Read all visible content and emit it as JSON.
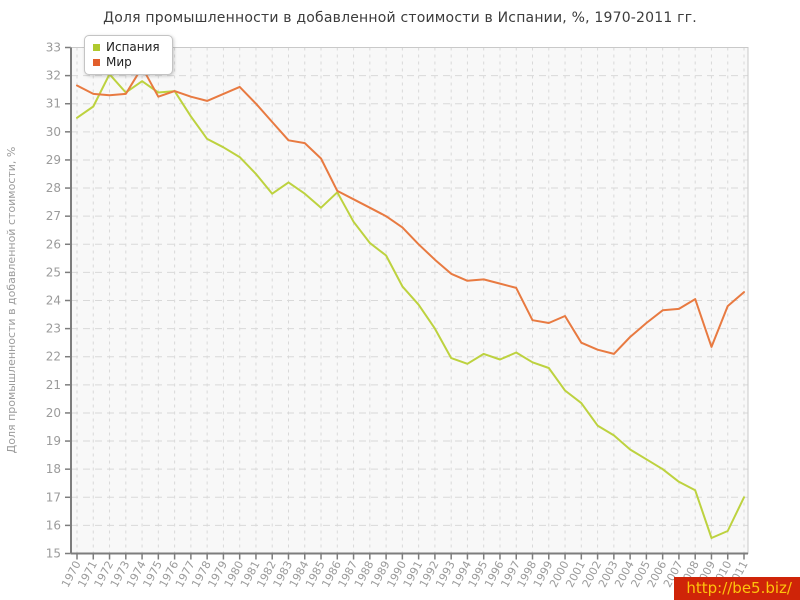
{
  "title": "Доля промышленности в добавленной стоимости в Испании, %, 1970-2011 гг.",
  "watermark": "http://be5.biz/",
  "colors": {
    "spain": "#bdd23f",
    "spain_marker": "#afc92e",
    "world": "#e87a41",
    "world_marker": "#e25e2b",
    "grid": "#d9d9d9",
    "plot_bg": "#f8f8f8",
    "plot_border": "#c9c9c9",
    "axis": "#7d7d7d",
    "tick_label": "#9b9b9b",
    "title_text": "#3c3c3c",
    "watermark_bg": "#cf2408",
    "watermark_text": "#fec30c"
  },
  "chart_data": {
    "type": "line",
    "title": "Доля промышленности в добавленной стоимости в Испании, %, 1970-2011 гг.",
    "xlabel": "",
    "ylabel": "Доля промышленности в добавленной стоимости, %",
    "ylim": [
      15,
      33
    ],
    "ytick_step": 1,
    "grid": true,
    "legend_position": "top-left",
    "x": [
      1970,
      1971,
      1972,
      1973,
      1974,
      1975,
      1976,
      1977,
      1978,
      1979,
      1980,
      1981,
      1982,
      1983,
      1984,
      1985,
      1986,
      1987,
      1988,
      1989,
      1990,
      1991,
      1992,
      1993,
      1994,
      1995,
      1996,
      1997,
      1998,
      1999,
      2000,
      2001,
      2002,
      2003,
      2004,
      2005,
      2006,
      2007,
      2008,
      2009,
      2010,
      2011
    ],
    "series": [
      {
        "id": "spain",
        "name": "Испания",
        "values": [
          30.5,
          30.9,
          32.05,
          31.4,
          31.8,
          31.4,
          31.45,
          30.55,
          29.75,
          29.45,
          29.1,
          28.5,
          27.8,
          28.2,
          27.8,
          27.3,
          27.85,
          26.8,
          26.05,
          25.6,
          24.5,
          23.85,
          23.0,
          21.95,
          21.75,
          22.1,
          21.9,
          22.15,
          21.8,
          21.6,
          20.8,
          20.35,
          19.55,
          19.2,
          18.7,
          18.35,
          18.0,
          17.55,
          17.25,
          15.55,
          15.8,
          17.0
        ]
      },
      {
        "id": "world",
        "name": "Мир",
        "values": [
          31.65,
          31.35,
          31.3,
          31.35,
          32.3,
          31.25,
          31.45,
          31.25,
          31.1,
          31.35,
          31.6,
          31.0,
          30.35,
          29.7,
          29.6,
          29.05,
          27.9,
          27.6,
          27.3,
          27.0,
          26.6,
          26.0,
          25.45,
          24.95,
          24.7,
          24.75,
          24.6,
          24.45,
          23.3,
          23.2,
          23.45,
          22.5,
          22.25,
          22.1,
          22.7,
          23.2,
          23.65,
          23.7,
          24.05,
          22.35,
          23.8,
          24.3
        ]
      }
    ]
  }
}
